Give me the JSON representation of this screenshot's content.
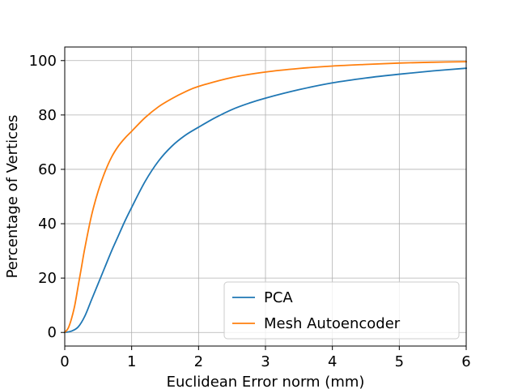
{
  "chart_data": {
    "type": "line",
    "title": "",
    "xlabel": "Euclidean Error norm (mm)",
    "ylabel": "Percentage of Vertices",
    "xlim": [
      0,
      6
    ],
    "ylim": [
      -5,
      105
    ],
    "xticks": [
      0,
      1,
      2,
      3,
      4,
      5,
      6
    ],
    "yticks": [
      0,
      20,
      40,
      60,
      80,
      100
    ],
    "grid": true,
    "legend_position": "lower-right",
    "series": [
      {
        "name": "PCA",
        "color": "#1f77b4",
        "x": [
          0,
          0.1,
          0.2,
          0.3,
          0.4,
          0.5,
          0.6,
          0.7,
          0.8,
          0.9,
          1.0,
          1.2,
          1.4,
          1.6,
          1.8,
          2.0,
          2.25,
          2.5,
          2.75,
          3.0,
          3.5,
          4.0,
          4.5,
          5.0,
          5.5,
          6.0
        ],
        "y": [
          0,
          0.5,
          2,
          6,
          12,
          18,
          24,
          30,
          35.5,
          41,
          46,
          55.5,
          63,
          68.5,
          72.5,
          75.5,
          79,
          82,
          84.3,
          86.2,
          89.3,
          91.8,
          93.6,
          95.0,
          96.2,
          97.2
        ]
      },
      {
        "name": "Mesh Autoencoder",
        "color": "#ff7f0e",
        "x": [
          0,
          0.05,
          0.1,
          0.15,
          0.2,
          0.25,
          0.3,
          0.4,
          0.5,
          0.6,
          0.7,
          0.8,
          0.9,
          1.0,
          1.2,
          1.4,
          1.6,
          1.8,
          2.0,
          2.5,
          3.0,
          3.5,
          4.0,
          4.5,
          5.0,
          5.5,
          6.0
        ],
        "y": [
          0,
          1.5,
          5,
          10,
          17,
          24,
          31,
          43,
          52,
          59,
          64.5,
          68.5,
          71.5,
          74,
          79,
          83,
          86,
          88.5,
          90.5,
          93.8,
          95.8,
          97.1,
          98.0,
          98.6,
          99.1,
          99.4,
          99.6
        ]
      }
    ]
  }
}
